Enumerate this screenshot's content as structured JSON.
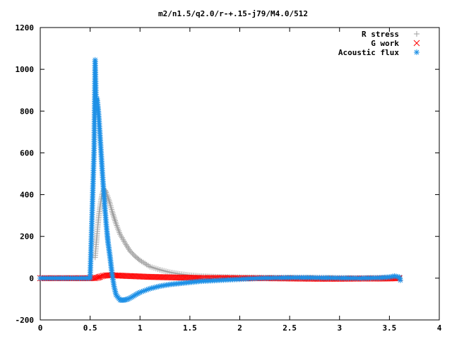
{
  "chart_data": {
    "type": "scatter",
    "title": "m2/n1.5/q2.0/r-+.15-j79/M4.0/512",
    "xlabel": "",
    "ylabel": "",
    "xlim": [
      0,
      4
    ],
    "ylim": [
      -200,
      1200
    ],
    "xticks": [
      "0",
      "0.5",
      "1",
      "1.5",
      "2",
      "2.5",
      "3",
      "3.5",
      "4"
    ],
    "yticks": [
      "-200",
      "0",
      "200",
      "400",
      "600",
      "800",
      "1000",
      "1200"
    ],
    "grid": false,
    "legend_position": "top-right",
    "series": [
      {
        "name": "R stress",
        "marker": "+",
        "color": "#a0a0a0",
        "x": [
          0.55,
          0.56,
          0.57,
          0.58,
          0.59,
          0.6,
          0.61,
          0.62,
          0.63,
          0.64,
          0.65,
          0.66,
          0.68,
          0.7,
          0.72,
          0.74,
          0.76,
          0.78,
          0.8,
          0.83,
          0.86,
          0.9,
          0.95,
          1.0,
          1.05,
          1.1,
          1.2,
          1.3,
          1.4,
          1.5,
          1.6,
          1.8,
          2.0,
          2.2,
          2.5,
          2.8,
          3.1,
          3.4,
          3.6
        ],
        "y": [
          100,
          160,
          215,
          265,
          310,
          345,
          375,
          400,
          415,
          425,
          420,
          410,
          385,
          355,
          320,
          290,
          260,
          235,
          210,
          185,
          160,
          130,
          105,
          85,
          70,
          55,
          40,
          28,
          20,
          14,
          10,
          6,
          4,
          3,
          2,
          1,
          0,
          0,
          0
        ]
      },
      {
        "name": "G work",
        "marker": "x",
        "color": "#ff0000",
        "x": [
          0.0,
          0.3,
          0.55,
          0.58,
          0.6,
          0.63,
          0.66,
          0.7,
          0.75,
          0.8,
          0.9,
          1.0,
          1.1,
          1.2,
          1.3,
          1.4,
          1.5,
          1.6,
          1.8,
          2.0,
          2.2,
          2.4,
          2.6,
          2.8,
          3.0,
          3.2,
          3.4,
          3.55,
          3.6
        ],
        "y": [
          0,
          0,
          0,
          3,
          7,
          11,
          13,
          14,
          13,
          12,
          10,
          8,
          6,
          5,
          4,
          3,
          2,
          1,
          1,
          0,
          0,
          -1,
          -2,
          -3,
          -3,
          -2,
          -2,
          -1,
          0
        ]
      },
      {
        "name": "Acoustic flux",
        "marker": "*",
        "color": "#1e90e6",
        "x": [
          0.0,
          0.25,
          0.5,
          0.54,
          0.55,
          0.56,
          0.57,
          0.58,
          0.59,
          0.6,
          0.61,
          0.62,
          0.63,
          0.64,
          0.65,
          0.66,
          0.67,
          0.68,
          0.7,
          0.72,
          0.74,
          0.76,
          0.8,
          0.84,
          0.88,
          0.92,
          0.96,
          1.0,
          1.1,
          1.2,
          1.3,
          1.4,
          1.5,
          1.6,
          1.8,
          2.0,
          2.2,
          2.4,
          2.6,
          2.8,
          3.0,
          3.2,
          3.4,
          3.5,
          3.55,
          3.6,
          3.61
        ],
        "y": [
          0,
          0,
          0,
          620,
          1045,
          845,
          858,
          815,
          750,
          675,
          600,
          525,
          455,
          390,
          325,
          265,
          215,
          170,
          100,
          20,
          -40,
          -80,
          -105,
          -105,
          -100,
          -90,
          -78,
          -68,
          -50,
          -38,
          -30,
          -25,
          -20,
          -15,
          -10,
          -5,
          0,
          2,
          3,
          2,
          1,
          0,
          2,
          5,
          10,
          5,
          -10
        ]
      }
    ]
  }
}
